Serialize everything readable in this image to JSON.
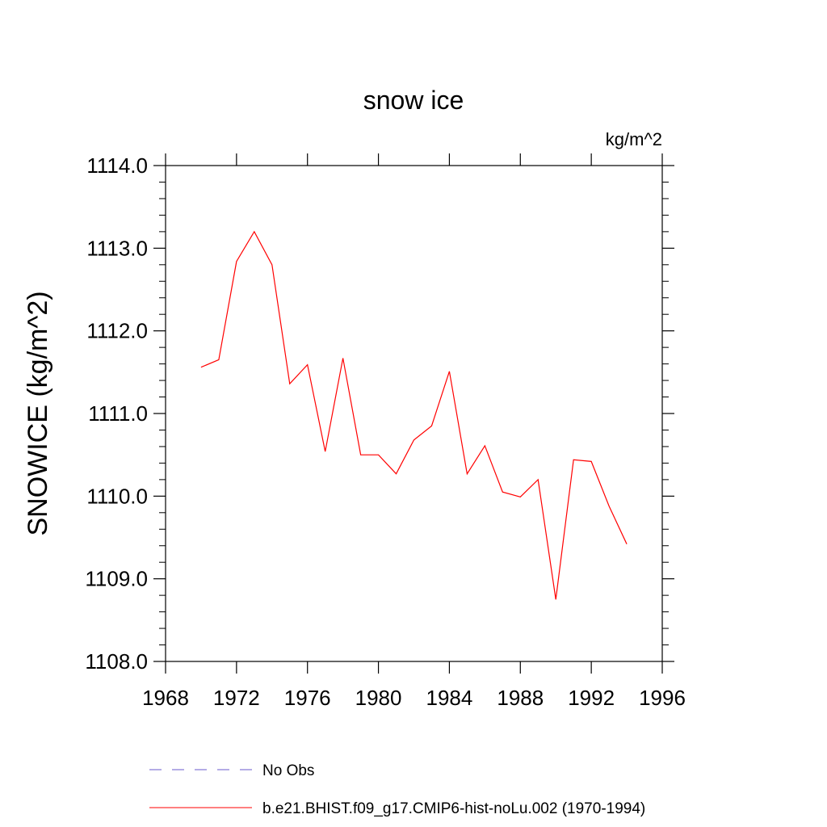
{
  "chart_data": {
    "type": "line",
    "title": "snow ice",
    "units": "kg/m^2",
    "ylabel": "SNOWICE  (kg/m^2)",
    "xlabel": "",
    "xlim": [
      1968,
      1996
    ],
    "ylim": [
      1108.0,
      1114.0
    ],
    "x_ticks": [
      1968,
      1972,
      1976,
      1980,
      1984,
      1988,
      1992,
      1996
    ],
    "x_tick_labels": [
      "1968",
      "1972",
      "1976",
      "1980",
      "1984",
      "1988",
      "1992",
      "1996"
    ],
    "y_ticks": [
      1108.0,
      1109.0,
      1110.0,
      1111.0,
      1112.0,
      1113.0,
      1114.0
    ],
    "y_tick_labels": [
      "1108.0",
      "1109.0",
      "1110.0",
      "1111.0",
      "1112.0",
      "1113.0",
      "1114.0"
    ],
    "grid": false,
    "legend_position": "bottom",
    "legend": [
      {
        "label": "No Obs",
        "color": "#6a5acd",
        "style": "dashed"
      },
      {
        "label": "b.e21.BHIST.f09_g17.CMIP6-hist-noLu.002 (1970-1994)",
        "color": "#ff0000",
        "style": "solid"
      }
    ],
    "series": [
      {
        "name": "b.e21.BHIST.f09_g17.CMIP6-hist-noLu.002 (1970-1994)",
        "color": "#ff0000",
        "x": [
          1970,
          1971,
          1972,
          1973,
          1974,
          1975,
          1976,
          1977,
          1978,
          1979,
          1980,
          1981,
          1982,
          1983,
          1984,
          1985,
          1986,
          1987,
          1988,
          1989,
          1990,
          1991,
          1992,
          1993,
          1994
        ],
        "y": [
          1111.56,
          1111.65,
          1112.84,
          1113.2,
          1112.8,
          1111.36,
          1111.59,
          1110.54,
          1111.67,
          1110.5,
          1110.5,
          1110.27,
          1110.68,
          1110.85,
          1111.51,
          1110.27,
          1110.61,
          1110.05,
          1109.99,
          1110.2,
          1108.75,
          1110.44,
          1110.42,
          1109.88,
          1109.42
        ]
      }
    ]
  }
}
